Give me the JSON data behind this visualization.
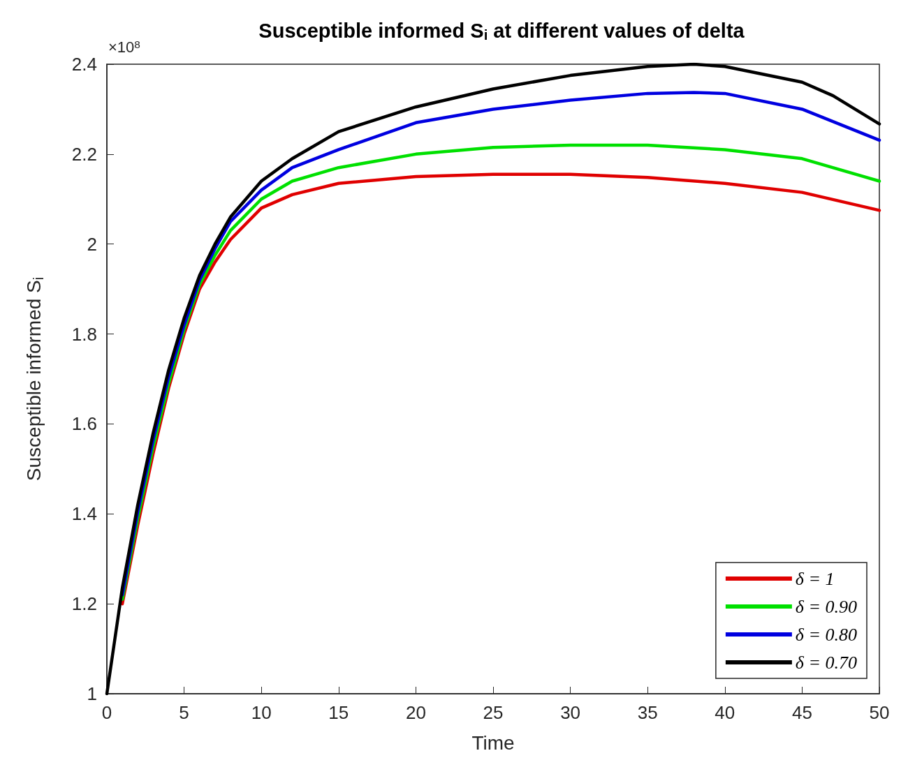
{
  "chart_data": {
    "type": "line",
    "title": "Susceptible informed S$_{i}$ at different values of delta",
    "xlabel": "Time",
    "ylabel": "Susceptible informed S$_{i}$",
    "annotations": [
      "×10$^{8}$"
    ],
    "xlim": [
      0,
      50
    ],
    "xticks": [
      0,
      5,
      10,
      15,
      20,
      25,
      30,
      35,
      40,
      45,
      50
    ],
    "ylim": [
      1,
      2.4
    ],
    "yticks": [
      1,
      1.2,
      1.4,
      1.6,
      1.8,
      2,
      2.2,
      2.4
    ],
    "grid": false,
    "legend": "bottom right",
    "marker": "none",
    "line_style": "solid",
    "series": [
      {
        "name": "δ = 1",
        "color": "#e00000",
        "x": [
          1,
          2,
          3,
          4,
          5,
          6,
          7,
          8,
          10,
          12,
          15,
          20,
          25,
          30,
          35,
          40,
          45,
          50
        ],
        "values": [
          1.2,
          1.375,
          1.535,
          1.68,
          1.8,
          1.9,
          1.96,
          2.01,
          2.08,
          2.11,
          2.135,
          2.15,
          2.155,
          2.155,
          2.148,
          2.135,
          2.115,
          2.075
        ]
      },
      {
        "name": "δ = 0.90",
        "color": "#00e000",
        "x": [
          1,
          2,
          3,
          4,
          5,
          6,
          7,
          8,
          10,
          12,
          15,
          20,
          25,
          30,
          35,
          40,
          45,
          50
        ],
        "values": [
          1.21,
          1.39,
          1.55,
          1.69,
          1.81,
          1.91,
          1.975,
          2.03,
          2.1,
          2.14,
          2.17,
          2.2,
          2.215,
          2.22,
          2.22,
          2.21,
          2.19,
          2.14
        ]
      },
      {
        "name": "δ = 0.80",
        "color": "#0000e0",
        "x": [
          1,
          2,
          3,
          4,
          5,
          6,
          7,
          8,
          10,
          12,
          15,
          20,
          25,
          30,
          35,
          38,
          40,
          45,
          50
        ],
        "values": [
          1.22,
          1.405,
          1.565,
          1.705,
          1.82,
          1.92,
          1.99,
          2.05,
          2.12,
          2.17,
          2.21,
          2.27,
          2.3,
          2.32,
          2.335,
          2.337,
          2.335,
          2.3,
          2.231
        ]
      },
      {
        "name": "δ = 0.70",
        "color": "#000000",
        "x": [
          0,
          1,
          2,
          3,
          4,
          5,
          6,
          7,
          8,
          10,
          12,
          15,
          20,
          25,
          30,
          35,
          38,
          40,
          45,
          47,
          50
        ],
        "values": [
          1,
          1.235,
          1.42,
          1.58,
          1.72,
          1.835,
          1.93,
          2.0,
          2.06,
          2.14,
          2.19,
          2.25,
          2.305,
          2.345,
          2.375,
          2.395,
          2.4,
          2.395,
          2.36,
          2.33,
          2.267
        ]
      }
    ]
  }
}
